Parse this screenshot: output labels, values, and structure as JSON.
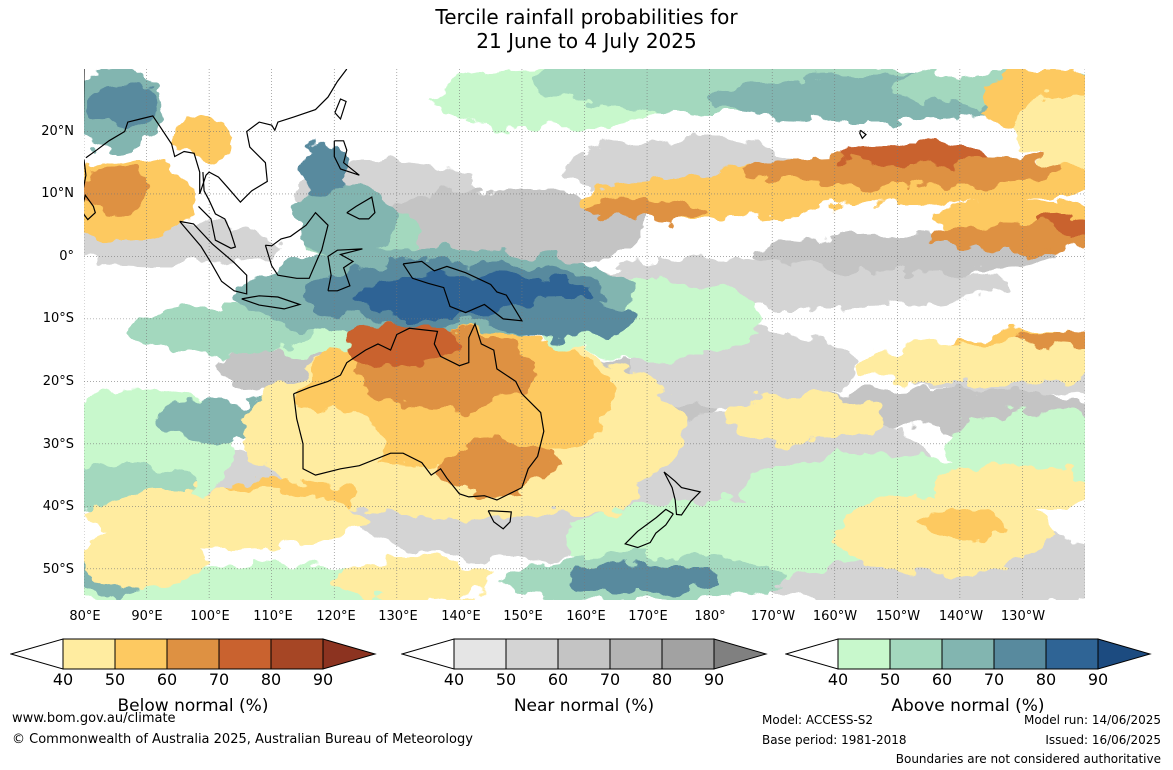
{
  "title": {
    "line1": "Tercile rainfall probabilities for",
    "line2": "21 June to 4 July 2025"
  },
  "map": {
    "lat_labels": [
      "20°N",
      "10°N",
      "0°",
      "10°S",
      "20°S",
      "30°S",
      "40°S",
      "50°S"
    ],
    "lon_labels": [
      "80°E",
      "90°E",
      "100°E",
      "110°E",
      "120°E",
      "130°E",
      "140°E",
      "150°E",
      "160°E",
      "170°E",
      "180°",
      "170°W",
      "160°W",
      "150°W",
      "140°W",
      "130°W"
    ],
    "colors": {
      "below": [
        "#ffeca0",
        "#fdc961",
        "#de9142",
        "#c9622f",
        "#a64625",
        "#8c3320"
      ],
      "near": [
        "#e5e5e5",
        "#d4d4d4",
        "#c4c4c4",
        "#b4b4b4",
        "#a2a2a2",
        "#808080"
      ],
      "above": [
        "#c8f8cc",
        "#a3d8be",
        "#82b5b0",
        "#588a9e",
        "#2f6495",
        "#1c4b80"
      ],
      "low": "#ffffff"
    }
  },
  "colorbars": [
    {
      "title": "Below normal (%)",
      "ticks": [
        "40",
        "50",
        "60",
        "70",
        "80",
        "90"
      ]
    },
    {
      "title": "Near normal (%)",
      "ticks": [
        "40",
        "50",
        "60",
        "70",
        "80",
        "90"
      ]
    },
    {
      "title": "Above normal (%)",
      "ticks": [
        "40",
        "50",
        "60",
        "70",
        "80",
        "90"
      ]
    }
  ],
  "footer": {
    "website": "www.bom.gov.au/climate",
    "copyright": "© Commonwealth of Australia 2025, Australian Bureau of Meteorology",
    "model": "Model: ACCESS-S2",
    "base_period": "Base period: 1981-2018",
    "model_run": "Model run: 14/06/2025",
    "issued": "Issued: 16/06/2025",
    "disclaimer": "Boundaries are not considered authoritative"
  }
}
